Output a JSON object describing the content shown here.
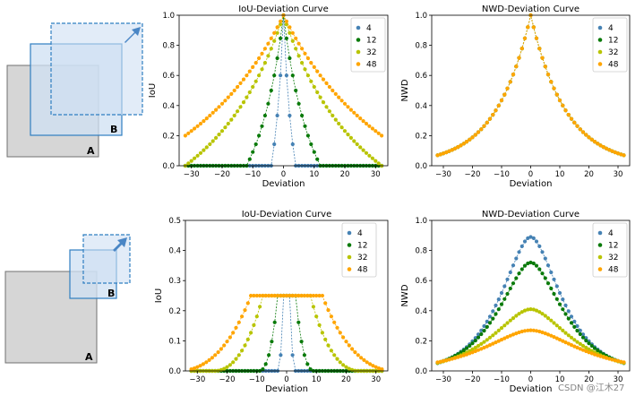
{
  "diagrams": [
    {
      "label_a": "A",
      "label_b": "B"
    },
    {
      "label_a": "A",
      "label_b": "B"
    }
  ],
  "colors": {
    "4": "#4682b4",
    "12": "#0a7a0a",
    "32": "#b8c400",
    "48": "#ffa500",
    "box_a_fill": "#d6d6d6",
    "box_a_stroke": "#707070",
    "box_b_fill": "#cfe0f3",
    "box_b_stroke": "#2f7fc1",
    "arrow": "#4a86c5"
  },
  "chart_data": [
    {
      "type": "scatter",
      "title": "IoU-Deviation Curve",
      "xlabel": "Deviation",
      "ylabel": "IoU",
      "xlim": [
        -34,
        34
      ],
      "ylim": [
        0,
        1.0
      ],
      "xticks": [
        "-30",
        "-20",
        "-10",
        "0",
        "10",
        "20",
        "30"
      ],
      "yticks": [
        "0.0",
        "0.2",
        "0.4",
        "0.6",
        "0.8",
        "1.0"
      ],
      "x": "integers -32..32",
      "series": [
        {
          "name": "4",
          "formula": "iou_same_size",
          "size": 4
        },
        {
          "name": "12",
          "formula": "iou_same_size",
          "size": 12
        },
        {
          "name": "32",
          "formula": "iou_same_size",
          "size": 32
        },
        {
          "name": "48",
          "formula": "iou_same_size",
          "size": 48
        }
      ]
    },
    {
      "type": "scatter",
      "title": "NWD-Deviation Curve",
      "xlabel": "Deviation",
      "ylabel": "NWD",
      "xlim": [
        -34,
        34
      ],
      "ylim": [
        0,
        1.0
      ],
      "xticks": [
        "-30",
        "-20",
        "-10",
        "0",
        "10",
        "20",
        "30"
      ],
      "yticks": [
        "0.0",
        "0.2",
        "0.4",
        "0.6",
        "0.8",
        "1.0"
      ],
      "x": "integers -32..32",
      "series": [
        {
          "name": "4",
          "formula": "nwd",
          "size": 4
        },
        {
          "name": "12",
          "formula": "nwd",
          "size": 12
        },
        {
          "name": "32",
          "formula": "nwd",
          "size": 32
        },
        {
          "name": "48",
          "formula": "nwd",
          "size": 48
        }
      ]
    },
    {
      "type": "scatter",
      "title": "IoU-Deviation Curve",
      "xlabel": "Deviation",
      "ylabel": "IoU",
      "xlim": [
        -34,
        34
      ],
      "ylim": [
        0,
        0.5
      ],
      "xticks": [
        "-30",
        "-20",
        "-10",
        "0",
        "10",
        "20",
        "30"
      ],
      "yticks": [
        "0.0",
        "0.1",
        "0.2",
        "0.3",
        "0.4",
        "0.5"
      ],
      "x": "integers -32..32",
      "series": [
        {
          "name": "4",
          "formula": "iou_half_size",
          "size": 4
        },
        {
          "name": "12",
          "formula": "iou_half_size",
          "size": 12
        },
        {
          "name": "32",
          "formula": "iou_half_size",
          "size": 32
        },
        {
          "name": "48",
          "formula": "iou_half_size",
          "size": 48
        }
      ]
    },
    {
      "type": "scatter",
      "title": "NWD-Deviation Curve",
      "xlabel": "Deviation",
      "ylabel": "NWD",
      "xlim": [
        -34,
        34
      ],
      "ylim": [
        0,
        1.0
      ],
      "xticks": [
        "-30",
        "-20",
        "-10",
        "0",
        "10",
        "20",
        "30"
      ],
      "yticks": [
        "0.0",
        "0.2",
        "0.4",
        "0.6",
        "0.8",
        "1.0"
      ],
      "x": "integers -32..32",
      "series": [
        {
          "name": "4",
          "peak": 0.89,
          "width": 14
        },
        {
          "name": "12",
          "peak": 0.72,
          "width": 15
        },
        {
          "name": "32",
          "peak": 0.41,
          "width": 18
        },
        {
          "name": "48",
          "peak": 0.27,
          "width": 22
        }
      ]
    }
  ],
  "watermark": "CSDN @江木27"
}
